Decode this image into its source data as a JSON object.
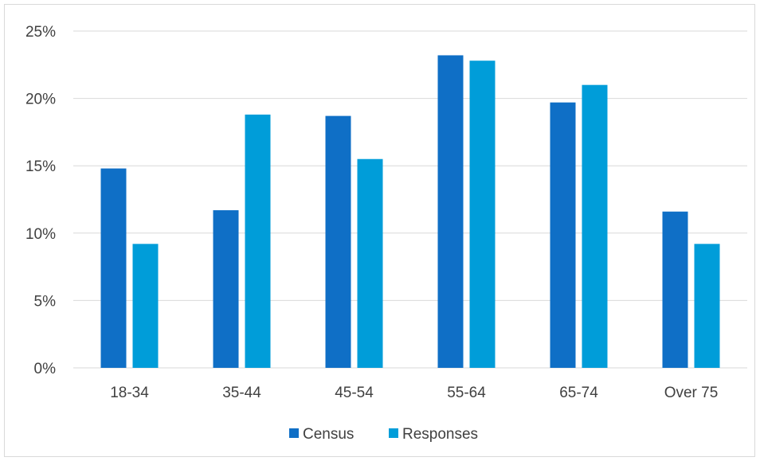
{
  "chart_data": {
    "type": "bar",
    "categories": [
      "18-34",
      "35-44",
      "45-54",
      "55-64",
      "65-74",
      "Over 75"
    ],
    "series": [
      {
        "name": "Census",
        "values": [
          14.8,
          11.7,
          18.7,
          23.2,
          19.7,
          11.6
        ],
        "color": "#0f6fc6"
      },
      {
        "name": "Responses",
        "values": [
          9.2,
          18.8,
          15.5,
          22.8,
          21.0,
          9.2
        ],
        "color": "#009dd9"
      }
    ],
    "y_ticks": [
      "0%",
      "5%",
      "10%",
      "15%",
      "20%",
      "25%"
    ],
    "ylim": [
      0,
      25
    ],
    "title": "",
    "xlabel": "",
    "ylabel": "",
    "grid": true,
    "legend_position": "bottom",
    "colors": {
      "grid": "#d9d9d9",
      "axis": "#d9d9d9",
      "text": "#404040",
      "frame": "#d9d9d9"
    }
  }
}
